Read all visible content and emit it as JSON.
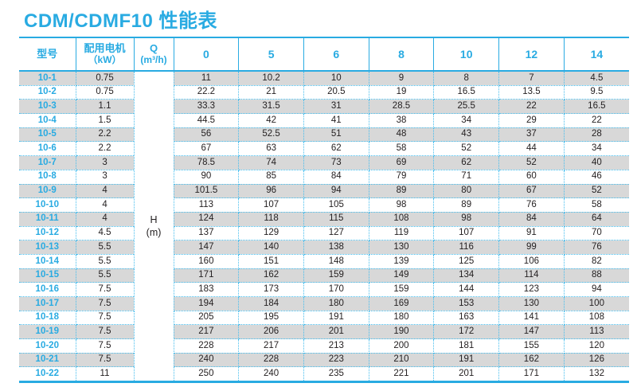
{
  "title": "CDM/CDMF10 性能表",
  "colors": {
    "accent_cyan": "#29abe2",
    "dotted_border": "#45bdee",
    "stripe_gray": "#d8d8d8",
    "value_text": "#231f20"
  },
  "table": {
    "headers": {
      "model": "型号",
      "motor_line1": "配用电机",
      "motor_line2": "（kW）",
      "q_line1": "Q",
      "q_line2": "(m³/h)",
      "flow_columns": [
        "0",
        "5",
        "6",
        "8",
        "10",
        "12",
        "14"
      ]
    },
    "merged_cell": {
      "line1": "H",
      "line2": "(m)"
    },
    "rows": [
      {
        "model": "10-1",
        "motor_kw": "0.75",
        "head_values": [
          "11",
          "10.2",
          "10",
          "9",
          "8",
          "7",
          "4.5"
        ]
      },
      {
        "model": "10-2",
        "motor_kw": "0.75",
        "head_values": [
          "22.2",
          "21",
          "20.5",
          "19",
          "16.5",
          "13.5",
          "9.5"
        ]
      },
      {
        "model": "10-3",
        "motor_kw": "1.1",
        "head_values": [
          "33.3",
          "31.5",
          "31",
          "28.5",
          "25.5",
          "22",
          "16.5"
        ]
      },
      {
        "model": "10-4",
        "motor_kw": "1.5",
        "head_values": [
          "44.5",
          "42",
          "41",
          "38",
          "34",
          "29",
          "22"
        ]
      },
      {
        "model": "10-5",
        "motor_kw": "2.2",
        "head_values": [
          "56",
          "52.5",
          "51",
          "48",
          "43",
          "37",
          "28"
        ]
      },
      {
        "model": "10-6",
        "motor_kw": "2.2",
        "head_values": [
          "67",
          "63",
          "62",
          "58",
          "52",
          "44",
          "34"
        ]
      },
      {
        "model": "10-7",
        "motor_kw": "3",
        "head_values": [
          "78.5",
          "74",
          "73",
          "69",
          "62",
          "52",
          "40"
        ]
      },
      {
        "model": "10-8",
        "motor_kw": "3",
        "head_values": [
          "90",
          "85",
          "84",
          "79",
          "71",
          "60",
          "46"
        ]
      },
      {
        "model": "10-9",
        "motor_kw": "4",
        "head_values": [
          "101.5",
          "96",
          "94",
          "89",
          "80",
          "67",
          "52"
        ]
      },
      {
        "model": "10-10",
        "motor_kw": "4",
        "head_values": [
          "113",
          "107",
          "105",
          "98",
          "89",
          "76",
          "58"
        ]
      },
      {
        "model": "10-11",
        "motor_kw": "4",
        "head_values": [
          "124",
          "118",
          "115",
          "108",
          "98",
          "84",
          "64"
        ]
      },
      {
        "model": "10-12",
        "motor_kw": "4.5",
        "head_values": [
          "137",
          "129",
          "127",
          "119",
          "107",
          "91",
          "70"
        ]
      },
      {
        "model": "10-13",
        "motor_kw": "5.5",
        "head_values": [
          "147",
          "140",
          "138",
          "130",
          "116",
          "99",
          "76"
        ]
      },
      {
        "model": "10-14",
        "motor_kw": "5.5",
        "head_values": [
          "160",
          "151",
          "148",
          "139",
          "125",
          "106",
          "82"
        ]
      },
      {
        "model": "10-15",
        "motor_kw": "5.5",
        "head_values": [
          "171",
          "162",
          "159",
          "149",
          "134",
          "114",
          "88"
        ]
      },
      {
        "model": "10-16",
        "motor_kw": "7.5",
        "head_values": [
          "183",
          "173",
          "170",
          "159",
          "144",
          "123",
          "94"
        ]
      },
      {
        "model": "10-17",
        "motor_kw": "7.5",
        "head_values": [
          "194",
          "184",
          "180",
          "169",
          "153",
          "130",
          "100"
        ]
      },
      {
        "model": "10-18",
        "motor_kw": "7.5",
        "head_values": [
          "205",
          "195",
          "191",
          "180",
          "163",
          "141",
          "108"
        ]
      },
      {
        "model": "10-19",
        "motor_kw": "7.5",
        "head_values": [
          "217",
          "206",
          "201",
          "190",
          "172",
          "147",
          "113"
        ]
      },
      {
        "model": "10-20",
        "motor_kw": "7.5",
        "head_values": [
          "228",
          "217",
          "213",
          "200",
          "181",
          "155",
          "120"
        ]
      },
      {
        "model": "10-21",
        "motor_kw": "7.5",
        "head_values": [
          "240",
          "228",
          "223",
          "210",
          "191",
          "162",
          "126"
        ]
      },
      {
        "model": "10-22",
        "motor_kw": "11",
        "head_values": [
          "250",
          "240",
          "235",
          "221",
          "201",
          "171",
          "132"
        ]
      }
    ]
  }
}
